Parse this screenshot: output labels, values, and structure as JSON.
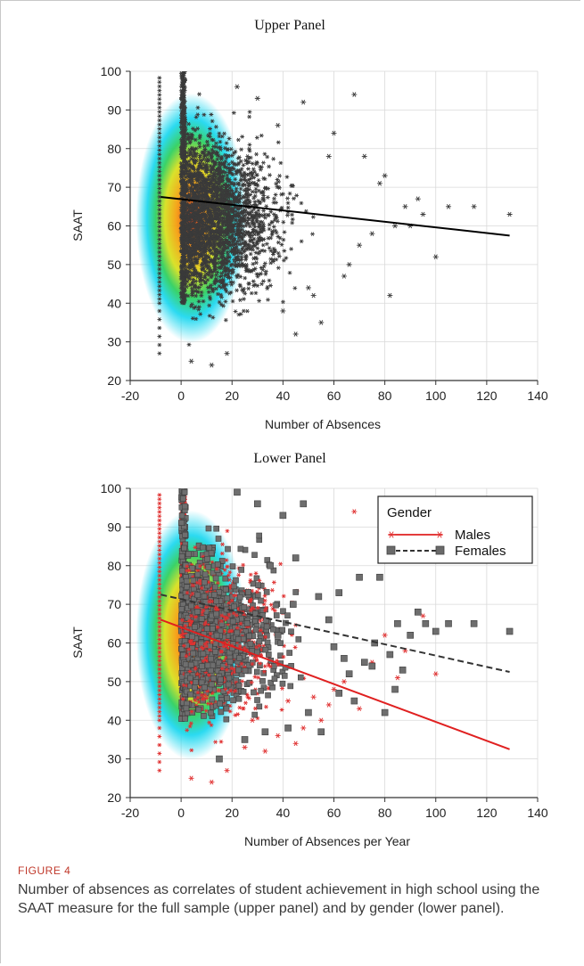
{
  "figure": {
    "label": "FIGURE 4",
    "caption": "Number of absences as correlates of student achievement in high school using the SAAT measure for the full sample (upper panel) and by gender (lower panel)."
  },
  "chart_data": [
    {
      "type": "scatter",
      "title": "Upper Panel",
      "xlabel": "Number of Absences",
      "ylabel": "SAAT",
      "xlim": [
        -20,
        140
      ],
      "ylim": [
        20,
        100
      ],
      "xticks": [
        -20,
        0,
        20,
        40,
        60,
        80,
        100,
        120,
        140
      ],
      "yticks": [
        20,
        30,
        40,
        50,
        60,
        70,
        80,
        90,
        100
      ],
      "grid": true,
      "density_overlay": true,
      "series": [
        {
          "marker": "asterisk",
          "color": "#333333",
          "fit_line": {
            "x": [
              -8,
              129
            ],
            "y": [
              67.5,
              57.5
            ],
            "color": "#000000",
            "dash": "solid"
          },
          "points": [
            [
              68,
              94
            ],
            [
              80,
              73
            ],
            [
              88,
              65
            ],
            [
              95,
              63
            ],
            [
              100,
              52
            ],
            [
              105,
              65
            ],
            [
              115,
              65
            ],
            [
              129,
              63
            ],
            [
              70,
              55
            ],
            [
              75,
              58
            ],
            [
              82,
              42
            ],
            [
              84,
              60
            ],
            [
              90,
              60
            ],
            [
              93,
              67
            ],
            [
              64,
              47
            ],
            [
              55,
              35
            ],
            [
              50,
              44
            ],
            [
              78,
              71
            ],
            [
              60,
              84
            ],
            [
              72,
              78
            ],
            [
              45,
              32
            ],
            [
              40,
              38
            ],
            [
              52,
              42
            ],
            [
              66,
              50
            ],
            [
              58,
              78
            ],
            [
              48,
              92
            ],
            [
              38,
              86
            ],
            [
              30,
              93
            ],
            [
              22,
              96
            ],
            [
              12,
              24
            ],
            [
              4,
              25
            ],
            [
              18,
              27
            ]
          ]
        }
      ]
    },
    {
      "type": "scatter",
      "title": "Lower Panel",
      "xlabel": "Number of Absences per Year",
      "ylabel": "SAAT",
      "xlim": [
        -20,
        140
      ],
      "ylim": [
        20,
        100
      ],
      "xticks": [
        -20,
        0,
        20,
        40,
        60,
        80,
        100,
        120,
        140
      ],
      "yticks": [
        20,
        30,
        40,
        50,
        60,
        70,
        80,
        90,
        100
      ],
      "grid": true,
      "density_overlay": true,
      "legend": {
        "title": "Gender",
        "position": "top-right"
      },
      "series": [
        {
          "name": "Males",
          "marker": "asterisk",
          "color": "#e03030",
          "fit_line": {
            "x": [
              -8,
              129
            ],
            "y": [
              66,
              32.5
            ],
            "color": "#e02020",
            "dash": "solid"
          },
          "points": [
            [
              68,
              94
            ],
            [
              95,
              67
            ],
            [
              100,
              52
            ],
            [
              60,
              48
            ],
            [
              55,
              40
            ],
            [
              45,
              34
            ],
            [
              33,
              32
            ],
            [
              12,
              24
            ],
            [
              4,
              25
            ],
            [
              18,
              27
            ],
            [
              75,
              55
            ],
            [
              88,
              58
            ],
            [
              48,
              38
            ],
            [
              38,
              36
            ],
            [
              25,
              33
            ],
            [
              70,
              43
            ],
            [
              64,
              50
            ],
            [
              52,
              46
            ],
            [
              58,
              44
            ],
            [
              80,
              62
            ],
            [
              85,
              51
            ],
            [
              42,
              45
            ],
            [
              28,
              40
            ],
            [
              15,
              30
            ]
          ]
        },
        {
          "name": "Females",
          "marker": "square",
          "color": "#666666",
          "fit_line": {
            "x": [
              -8,
              129
            ],
            "y": [
              72.5,
              52.5
            ],
            "color": "#333333",
            "dash": "dashed"
          },
          "points": [
            [
              80,
              42
            ],
            [
              82,
              57
            ],
            [
              90,
              62
            ],
            [
              93,
              68
            ],
            [
              96,
              65
            ],
            [
              100,
              63
            ],
            [
              105,
              65
            ],
            [
              115,
              65
            ],
            [
              129,
              63
            ],
            [
              70,
              77
            ],
            [
              78,
              77
            ],
            [
              76,
              60
            ],
            [
              84,
              48
            ],
            [
              66,
              52
            ],
            [
              62,
              47
            ],
            [
              55,
              37
            ],
            [
              50,
              42
            ],
            [
              48,
              96
            ],
            [
              40,
              93
            ],
            [
              30,
              96
            ],
            [
              22,
              99
            ],
            [
              35,
              80
            ],
            [
              45,
              82
            ],
            [
              58,
              66
            ],
            [
              62,
              73
            ],
            [
              72,
              55
            ],
            [
              85,
              65
            ],
            [
              87,
              53
            ],
            [
              68,
              45
            ],
            [
              60,
              59
            ],
            [
              75,
              54
            ],
            [
              64,
              56
            ],
            [
              15,
              30
            ],
            [
              25,
              35
            ],
            [
              33,
              37
            ],
            [
              42,
              38
            ],
            [
              54,
              72
            ],
            [
              44,
              70
            ],
            [
              38,
              62
            ]
          ]
        }
      ]
    }
  ]
}
